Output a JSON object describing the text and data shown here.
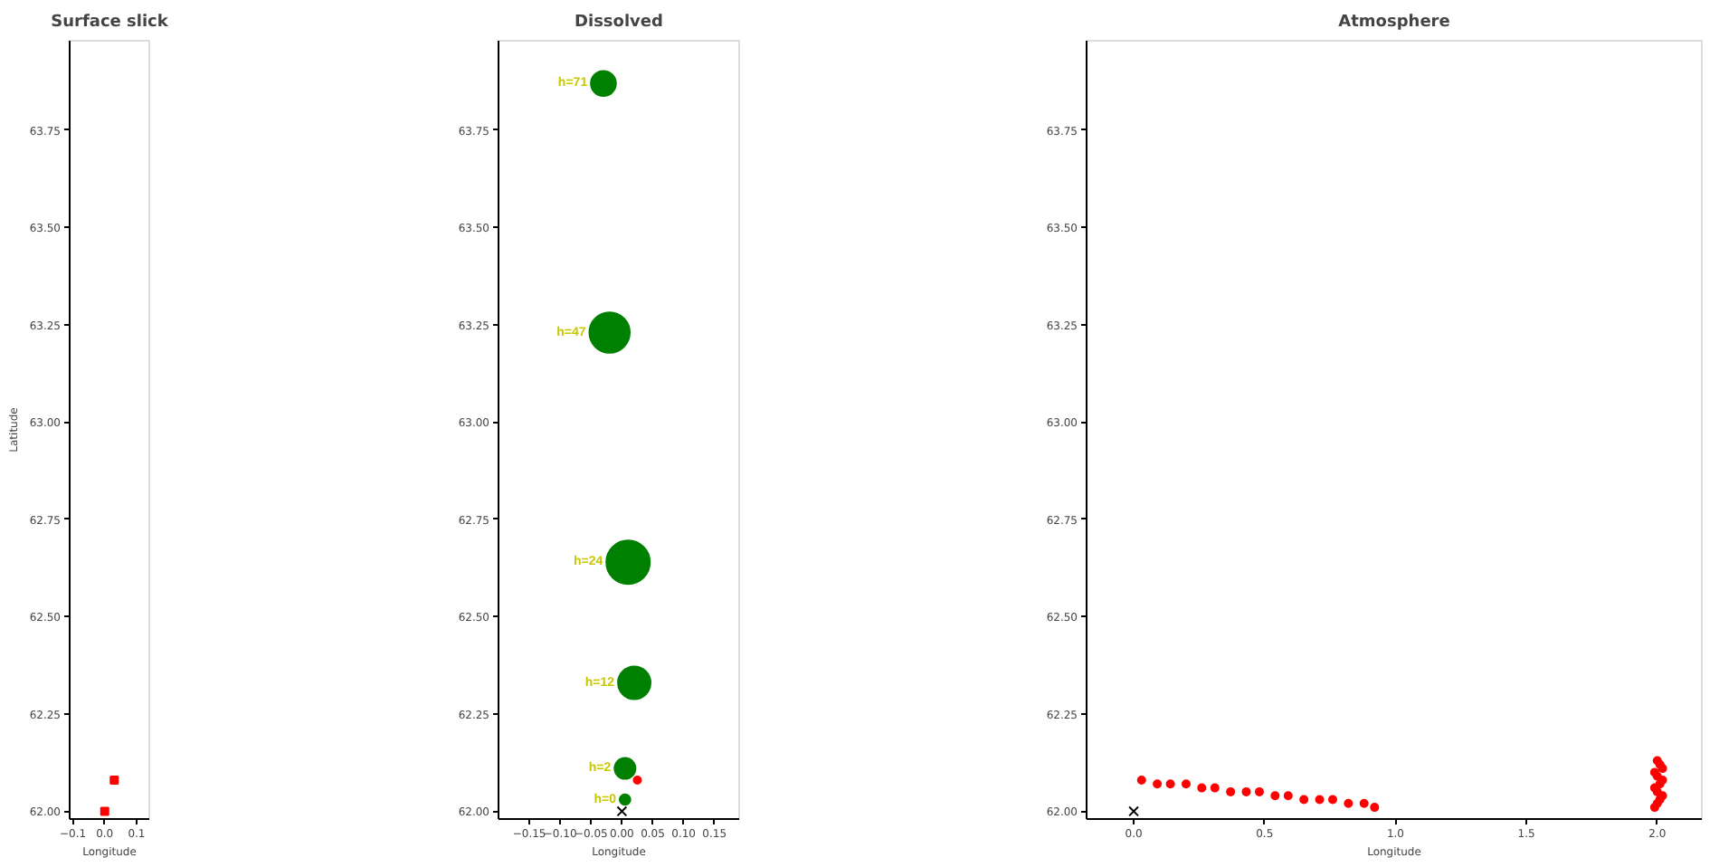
{
  "chart_data": [
    {
      "type": "scatter",
      "title": "Surface slick",
      "xlabel": "Longitude",
      "ylabel": "Latitude",
      "xlim": [
        -0.11,
        0.14
      ],
      "ylim": [
        61.98,
        63.98
      ],
      "xticks": [
        {
          "value": -0.1,
          "label": "−0.1"
        },
        {
          "value": 0.0,
          "label": "0.0"
        },
        0.1
      ],
      "yticks": [
        {
          "value": 62.0,
          "label": "62.00"
        },
        62.25,
        {
          "value": 62.5,
          "label": "62.50"
        },
        62.75,
        {
          "value": 63.0,
          "label": "63.00"
        },
        63.25,
        {
          "value": 63.5,
          "label": "63.50"
        },
        63.75
      ],
      "marker": "square",
      "series": [
        {
          "color": "#ff0000",
          "x": [
            0.0,
            0.03
          ],
          "values": [
            62.0,
            62.08
          ]
        }
      ]
    },
    {
      "type": "bubble",
      "title": "Dissolved",
      "xlabel": "Longitude",
      "xlim": [
        -0.2,
        0.19
      ],
      "ylim": [
        61.98,
        63.98
      ],
      "xticks": [
        {
          "value": -0.15,
          "label": "−0.15"
        },
        {
          "value": -0.1,
          "label": "−0.10"
        },
        {
          "value": -0.05,
          "label": "−0.05"
        },
        {
          "value": 0.0,
          "label": "0.00"
        },
        0.05,
        {
          "value": 0.1,
          "label": "0.10"
        },
        0.15
      ],
      "yticks": [
        {
          "value": 62.0,
          "label": "62.00"
        },
        62.25,
        {
          "value": 62.5,
          "label": "62.50"
        },
        62.75,
        {
          "value": 63.0,
          "label": "63.00"
        },
        63.25,
        {
          "value": 63.5,
          "label": "63.50"
        },
        63.75
      ],
      "series": [
        {
          "type": "bubble",
          "color": "#008000",
          "x": [
            0.005,
            0.005,
            0.02,
            0.01,
            -0.02,
            -0.03
          ],
          "values": [
            62.03,
            62.11,
            62.33,
            62.64,
            63.23,
            63.87
          ],
          "sizes": [
            0.06,
            0.23,
            0.56,
            1,
            0.86,
            0.33
          ]
        },
        {
          "type": "scatter",
          "marker": "circle",
          "color": "#ff0000",
          "x": [
            0.025
          ],
          "values": [
            62.08
          ]
        },
        {
          "type": "scatter",
          "marker": "cross",
          "color": "#000000",
          "x": [
            0.0
          ],
          "values": [
            62.0
          ]
        }
      ],
      "annotations": [
        {
          "text": "h=0",
          "x": 0.005,
          "y": 62.03
        },
        {
          "text": "h=2",
          "x": 0.005,
          "y": 62.11
        },
        {
          "text": "h=12",
          "x": 0.02,
          "y": 62.33
        },
        {
          "text": "h=24",
          "x": 0.01,
          "y": 62.64
        },
        {
          "text": "h=47",
          "x": -0.02,
          "y": 63.23
        },
        {
          "text": "h=71",
          "x": -0.03,
          "y": 63.87
        }
      ]
    },
    {
      "type": "scatter",
      "title": "Atmosphere",
      "xlabel": "Longitude",
      "xlim": [
        -0.18,
        2.17
      ],
      "ylim": [
        61.98,
        63.98
      ],
      "xticks": [
        {
          "value": 0.0,
          "label": "0.0"
        },
        0.5,
        {
          "value": 1.0,
          "label": "1.0"
        },
        1.5,
        {
          "value": 2.0,
          "label": "2.0"
        }
      ],
      "yticks": [
        {
          "value": 62.0,
          "label": "62.00"
        },
        62.25,
        {
          "value": 62.5,
          "label": "62.50"
        },
        62.75,
        {
          "value": 63.0,
          "label": "63.00"
        },
        63.25,
        {
          "value": 63.5,
          "label": "63.50"
        },
        63.75
      ],
      "series": [
        {
          "marker": "circle",
          "color": "#ff0000",
          "x": [
            0.03,
            0.09,
            0.14,
            0.2,
            0.26,
            0.31,
            0.37,
            0.43,
            0.48,
            0.54,
            0.59,
            0.65,
            0.71,
            0.76,
            0.82,
            0.88,
            0.92,
            1.99,
            2.0,
            2.01,
            2.02,
            2.0,
            1.99,
            2.01,
            2.02,
            2.0,
            1.99,
            2.02,
            2.01,
            2.0
          ],
          "values": [
            62.08,
            62.07,
            62.07,
            62.07,
            62.06,
            62.06,
            62.05,
            62.05,
            62.05,
            62.04,
            62.04,
            62.03,
            62.03,
            62.03,
            62.02,
            62.02,
            62.01,
            62.01,
            62.02,
            62.03,
            62.04,
            62.05,
            62.06,
            62.07,
            62.08,
            62.09,
            62.1,
            62.11,
            62.12,
            62.13
          ]
        },
        {
          "marker": "cross",
          "color": "#000000",
          "x": [
            0.0
          ],
          "values": [
            62.0
          ]
        }
      ]
    }
  ]
}
